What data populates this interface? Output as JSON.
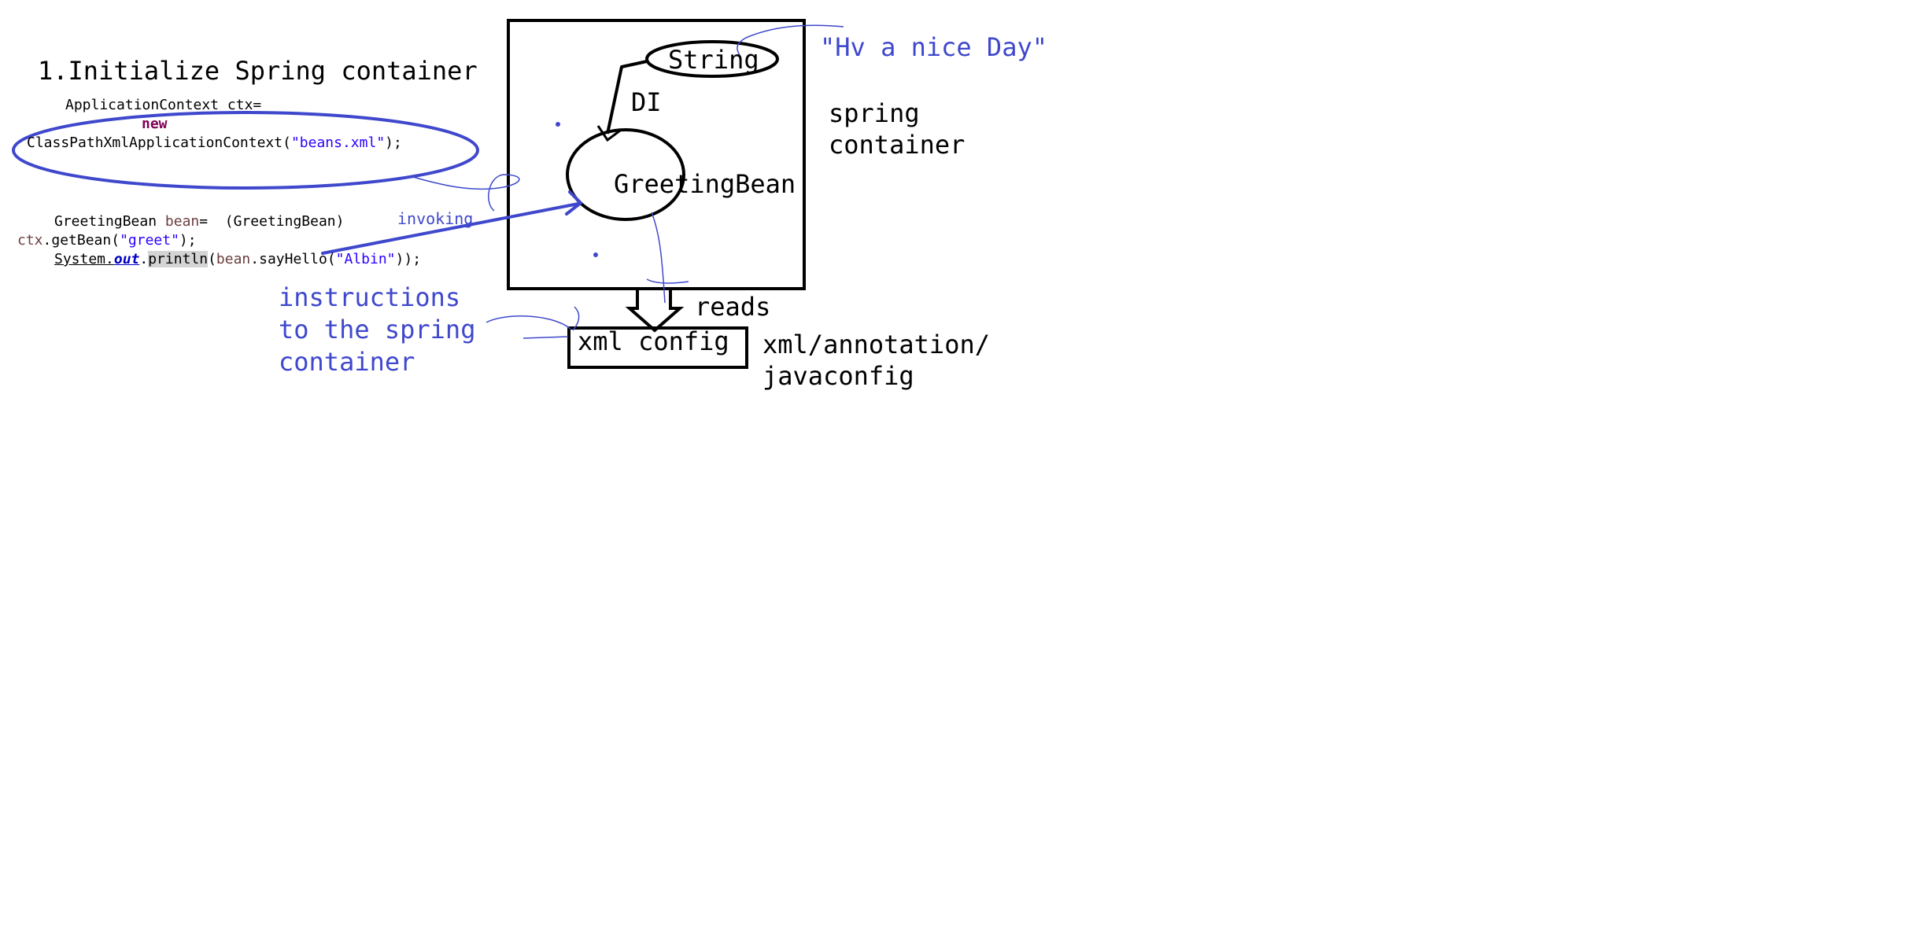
{
  "heading": "1.Initialize Spring container",
  "code": {
    "line1": "ApplicationContext ctx=",
    "line2_kw": "new",
    "line3_prefix": "ClassPathXmlApplicationContext(",
    "line3_str": "\"beans.xml\"",
    "line3_suffix": ");",
    "line4_a": "GreetingBean ",
    "line4_var": "bean",
    "line4_b": "=  (GreetingBean)",
    "line5_a": "ctx.getBean(",
    "line5_str": "\"greet\"",
    "line5_b": ");",
    "line6_sys": "System.",
    "line6_out": "out",
    "line6_dot": ".",
    "line6_println": "println",
    "line6_open": "(",
    "line6_var": "bean",
    "line6_call": ".sayHello(",
    "line6_str": "\"Albin\"",
    "line6_close": "));"
  },
  "labels": {
    "invoking": "invoking",
    "instructions_1": "instructions",
    "instructions_2": "to the spring",
    "instructions_3": "container",
    "string_node": "String",
    "hv_nice_day": "\"Hv a nice Day\"",
    "di": "DI",
    "greeting_bean": "GreetingBean",
    "spring_1": "spring",
    "spring_2": "container",
    "reads": "reads",
    "xml_config": "xml config",
    "config_types_1": "xml/annotation/",
    "config_types_2": "javaconfig"
  },
  "colors": {
    "ink_black": "#000000",
    "ink_blue": "#3f48cc"
  }
}
